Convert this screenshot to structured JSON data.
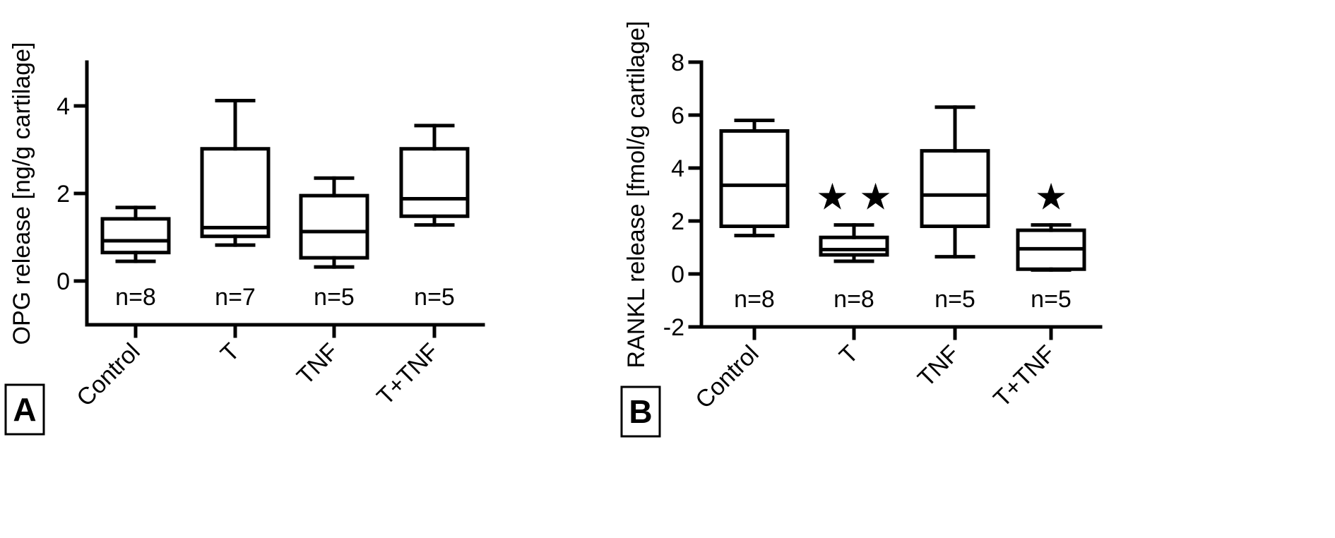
{
  "chart_data": [
    {
      "type": "box",
      "panel_label": "A",
      "ylabel": "OPG release [ng/g cartilage]",
      "ylim": [
        -1,
        5
      ],
      "yticks": [
        0,
        2,
        4
      ],
      "categories": [
        "Control",
        "T",
        "TNF",
        "T+TNF"
      ],
      "n_labels": [
        "n=8",
        "n=7",
        "n=5",
        "n=5"
      ],
      "boxes": [
        {
          "min": 0.45,
          "q1": 0.65,
          "median": 0.92,
          "q3": 1.42,
          "max": 1.68
        },
        {
          "min": 0.82,
          "q1": 1.02,
          "median": 1.22,
          "q3": 3.02,
          "max": 4.12
        },
        {
          "min": 0.32,
          "q1": 0.53,
          "median": 1.13,
          "q3": 1.95,
          "max": 2.35
        },
        {
          "min": 1.28,
          "q1": 1.48,
          "median": 1.88,
          "q3": 3.02,
          "max": 3.55
        }
      ],
      "significance": [
        "",
        "",
        "",
        ""
      ],
      "legend": "none",
      "grid": false
    },
    {
      "type": "box",
      "panel_label": "B",
      "ylabel": "RANKL release [fmol/g cartilage]",
      "ylim": [
        -2,
        8
      ],
      "yticks": [
        -2,
        0,
        2,
        4,
        6,
        8
      ],
      "categories": [
        "Control",
        "T",
        "TNF",
        "T+TNF"
      ],
      "n_labels": [
        "n=8",
        "n=8",
        "n=5",
        "n=5"
      ],
      "boxes": [
        {
          "min": 1.45,
          "q1": 1.8,
          "median": 3.35,
          "q3": 5.4,
          "max": 5.8
        },
        {
          "min": 0.48,
          "q1": 0.72,
          "median": 0.92,
          "q3": 1.38,
          "max": 1.85
        },
        {
          "min": 0.65,
          "q1": 1.8,
          "median": 2.98,
          "q3": 4.65,
          "max": 6.3
        },
        {
          "min": 0.15,
          "q1": 0.18,
          "median": 0.95,
          "q3": 1.65,
          "max": 1.85
        }
      ],
      "significance": [
        "",
        "★ ★",
        "",
        "★"
      ],
      "legend": "none",
      "grid": false
    }
  ]
}
